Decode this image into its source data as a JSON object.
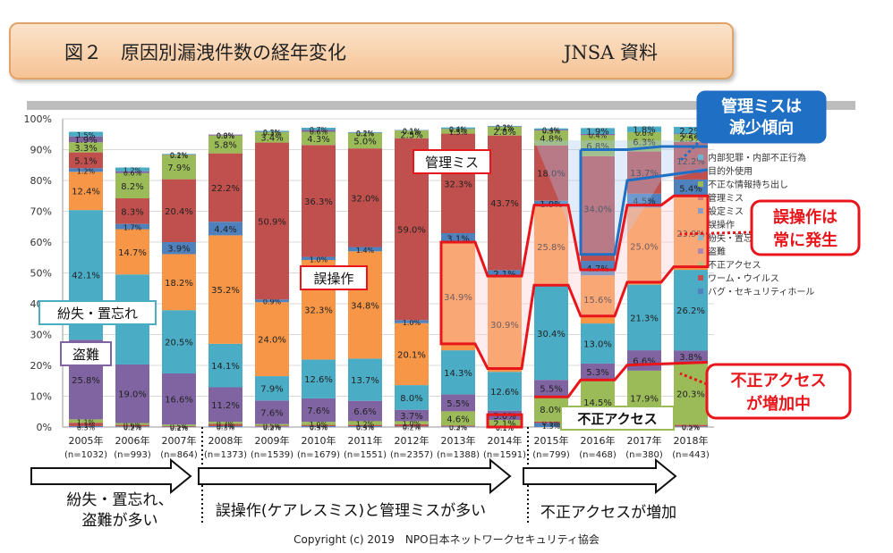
{
  "header": {
    "title": "図２　原因別漏洩件数の経年変化",
    "source": "JNSA 資料"
  },
  "footer": {
    "copyright": "Copyright (c) 2019　NPO日本ネットワークセキュリティ協会"
  },
  "eras": [
    {
      "label_line1": "紛失・置忘れ、",
      "label_line2": "盗難が多い"
    },
    {
      "label_line1": "誤操作(ケアレスミス)と管理ミスが多い",
      "label_line2": ""
    },
    {
      "label_line1": "不正アクセスが増加",
      "label_line2": ""
    }
  ],
  "annotations": {
    "kanri_trend": [
      "管理ミスは",
      "減少傾向"
    ],
    "gosousa_always": [
      "誤操作は",
      "常に発生"
    ],
    "fusei_increase": [
      "不正アクセス",
      "が増加中"
    ],
    "label_kanri_miss": "管理ミス",
    "label_gosousa": "誤操作",
    "label_funshitsu": "紛失・置忘れ",
    "label_tounan": "盗難",
    "label_fusei_access": "不正アクセス"
  },
  "chart_data": {
    "type": "bar",
    "stacked": true,
    "ylim": [
      0,
      100
    ],
    "yticks": [
      "0%",
      "10%",
      "20%",
      "30%",
      "40%",
      "50%",
      "60%",
      "70%",
      "80%",
      "90%",
      "100%"
    ],
    "categories": [
      "2005年",
      "2006年",
      "2007年",
      "2008年",
      "2009年",
      "2010年",
      "2011年",
      "2012年",
      "2013年",
      "2014年",
      "2015年",
      "2016年",
      "2017年",
      "2018年"
    ],
    "sample_sizes": [
      "(n=1032)",
      "(n=993)",
      "(n=864)",
      "(n=1373)",
      "(n=1539)",
      "(n=1679)",
      "(n=1551)",
      "(n=2357)",
      "(n=1388)",
      "(n=1591)",
      "(n=799)",
      "(n=468)",
      "(n=380)",
      "(n=443)"
    ],
    "legend_position": "right",
    "series": [
      {
        "name": "バグ・セキュリティホール",
        "color": "#4f81bd",
        "values": [
          0.3,
          0.2,
          0.1,
          0.3,
          0.2,
          0.3,
          0.3,
          0.2,
          0.2,
          0.1,
          1.3,
          0.4,
          0.1,
          0.2
        ]
      },
      {
        "name": "ワーム・ウイルス",
        "color": "#c0504d",
        "values": [
          1.1,
          0.5,
          0.2,
          0.7,
          0.3,
          0.4,
          0.4,
          0.7,
          0.3,
          0.1,
          0.5,
          0.4,
          0.3,
          0.5
        ]
      },
      {
        "name": "不正アクセス",
        "color": "#9bbb59",
        "values": [
          1.1,
          0.6,
          0.5,
          0.7,
          0.5,
          1.0,
          1.2,
          1.0,
          4.6,
          2.1,
          8.0,
          14.5,
          17.9,
          20.3
        ]
      },
      {
        "name": "盗難",
        "color": "#8064a2",
        "values": [
          25.8,
          19.0,
          16.6,
          11.2,
          7.6,
          7.6,
          6.6,
          3.7,
          5.5,
          3.0,
          5.5,
          5.3,
          6.6,
          3.8
        ]
      },
      {
        "name": "紛失・置忘れ",
        "color": "#4bacc6",
        "values": [
          42.1,
          29.2,
          20.5,
          14.1,
          7.9,
          12.6,
          13.7,
          8.0,
          14.3,
          12.6,
          30.4,
          13.0,
          21.3,
          26.2
        ]
      },
      {
        "name": "誤操作",
        "color": "#f79646",
        "values": [
          12.4,
          14.7,
          18.2,
          35.2,
          24.0,
          32.3,
          34.8,
          20.1,
          34.9,
          30.9,
          25.8,
          15.6,
          25.0,
          23.9
        ]
      },
      {
        "name": "設定ミス",
        "color": "#4f81bd",
        "values": [
          1.2,
          1.7,
          3.9,
          4.4,
          0.9,
          1.0,
          1.4,
          1.0,
          3.1,
          2.1,
          1.9,
          4.7,
          4.5,
          5.4
        ]
      },
      {
        "name": "管理ミス",
        "color": "#c0504d",
        "values": [
          5.1,
          8.3,
          20.4,
          22.2,
          50.9,
          36.3,
          32.0,
          59.0,
          32.3,
          43.7,
          18.0,
          34.0,
          13.7,
          12.2
        ]
      },
      {
        "name": "不正な情報持ち出し",
        "color": "#9bbb59",
        "values": [
          3.3,
          8.2,
          7.9,
          5.8,
          3.4,
          4.3,
          5.0,
          2.5,
          1.5,
          2.8,
          4.8,
          6.8,
          6.3,
          2.5
        ]
      },
      {
        "name": "目的外使用",
        "color": "#8064a2",
        "values": [
          1.9,
          0.6,
          0.1,
          0.3,
          0.1,
          0.6,
          0.1,
          0.1,
          0.1,
          0.1,
          0.3,
          0.4,
          0.0,
          0.2
        ]
      },
      {
        "name": "内部犯罪・内部不正行為",
        "color": "#4bacc6",
        "values": [
          1.5,
          1.2,
          0.2,
          0.0,
          0.3,
          0.7,
          0.2,
          0.1,
          0.4,
          0.2,
          0.4,
          1.9,
          1.8,
          2.2
        ]
      }
    ]
  }
}
